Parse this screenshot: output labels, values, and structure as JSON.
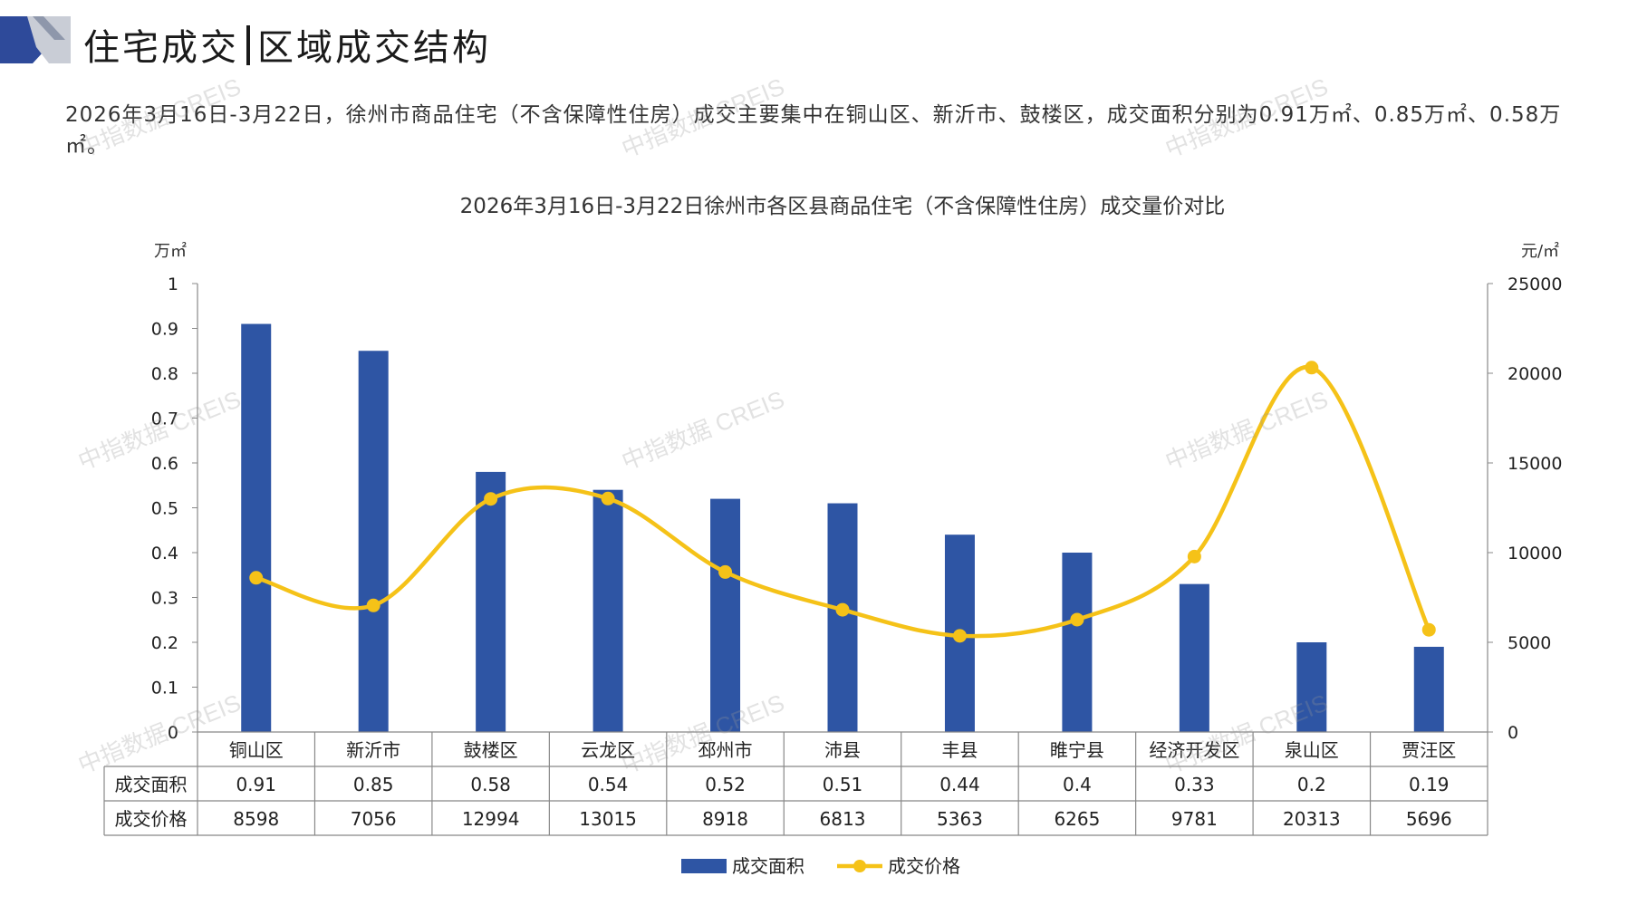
{
  "header": {
    "title_left": "住宅成交",
    "title_right": "区域成交结构",
    "colors": {
      "logo_dark": "#2e4a9a",
      "logo_light": "#c9cdd6"
    }
  },
  "summary": {
    "text": "2026年3月16日-3月22日，徐州市商品住宅（不含保障性住房）成交主要集中在铜山区、新沂市、鼓楼区，成交面积分别为0.91万㎡、0.85万㎡、0.58万㎡。"
  },
  "watermark": {
    "text": "中指数据 CREIS"
  },
  "chart_data": {
    "type": "bar",
    "title": "2026年3月16日-3月22日徐州市各区县商品住宅（不含保障性住房）成交量价对比",
    "categories": [
      "铜山区",
      "新沂市",
      "鼓楼区",
      "云龙区",
      "邳州市",
      "沛县",
      "丰县",
      "睢宁县",
      "经济开发区",
      "泉山区",
      "贾汪区"
    ],
    "series": [
      {
        "name": "成交面积",
        "type": "bar",
        "axis": "left",
        "color": "#2e55a4",
        "values": [
          0.91,
          0.85,
          0.58,
          0.54,
          0.52,
          0.51,
          0.44,
          0.4,
          0.33,
          0.2,
          0.19
        ]
      },
      {
        "name": "成交价格",
        "type": "line",
        "smooth": true,
        "axis": "right",
        "color": "#f5c218",
        "values": [
          8598,
          7056,
          12994,
          13015,
          8918,
          6813,
          5363,
          6265,
          9781,
          20313,
          5696
        ]
      }
    ],
    "ylabel_left": "万㎡",
    "ylabel_right": "元/㎡",
    "ylim_left": [
      0,
      1
    ],
    "ylim_right": [
      0,
      25000
    ],
    "yticks_left": [
      "0",
      "0.1",
      "0.2",
      "0.3",
      "0.4",
      "0.5",
      "0.6",
      "0.7",
      "0.8",
      "0.9",
      "1"
    ],
    "yticks_right": [
      "0",
      "5000",
      "10000",
      "15000",
      "20000",
      "25000"
    ],
    "table_rows": [
      {
        "label": "成交面积",
        "values": [
          "0.91",
          "0.85",
          "0.58",
          "0.54",
          "0.52",
          "0.51",
          "0.44",
          "0.4",
          "0.33",
          "0.2",
          "0.19"
        ]
      },
      {
        "label": "成交价格",
        "values": [
          "8598",
          "7056",
          "12994",
          "13015",
          "8918",
          "6813",
          "5363",
          "6265",
          "9781",
          "20313",
          "5696"
        ]
      }
    ],
    "grid": false,
    "legend_position": "bottom-center"
  }
}
